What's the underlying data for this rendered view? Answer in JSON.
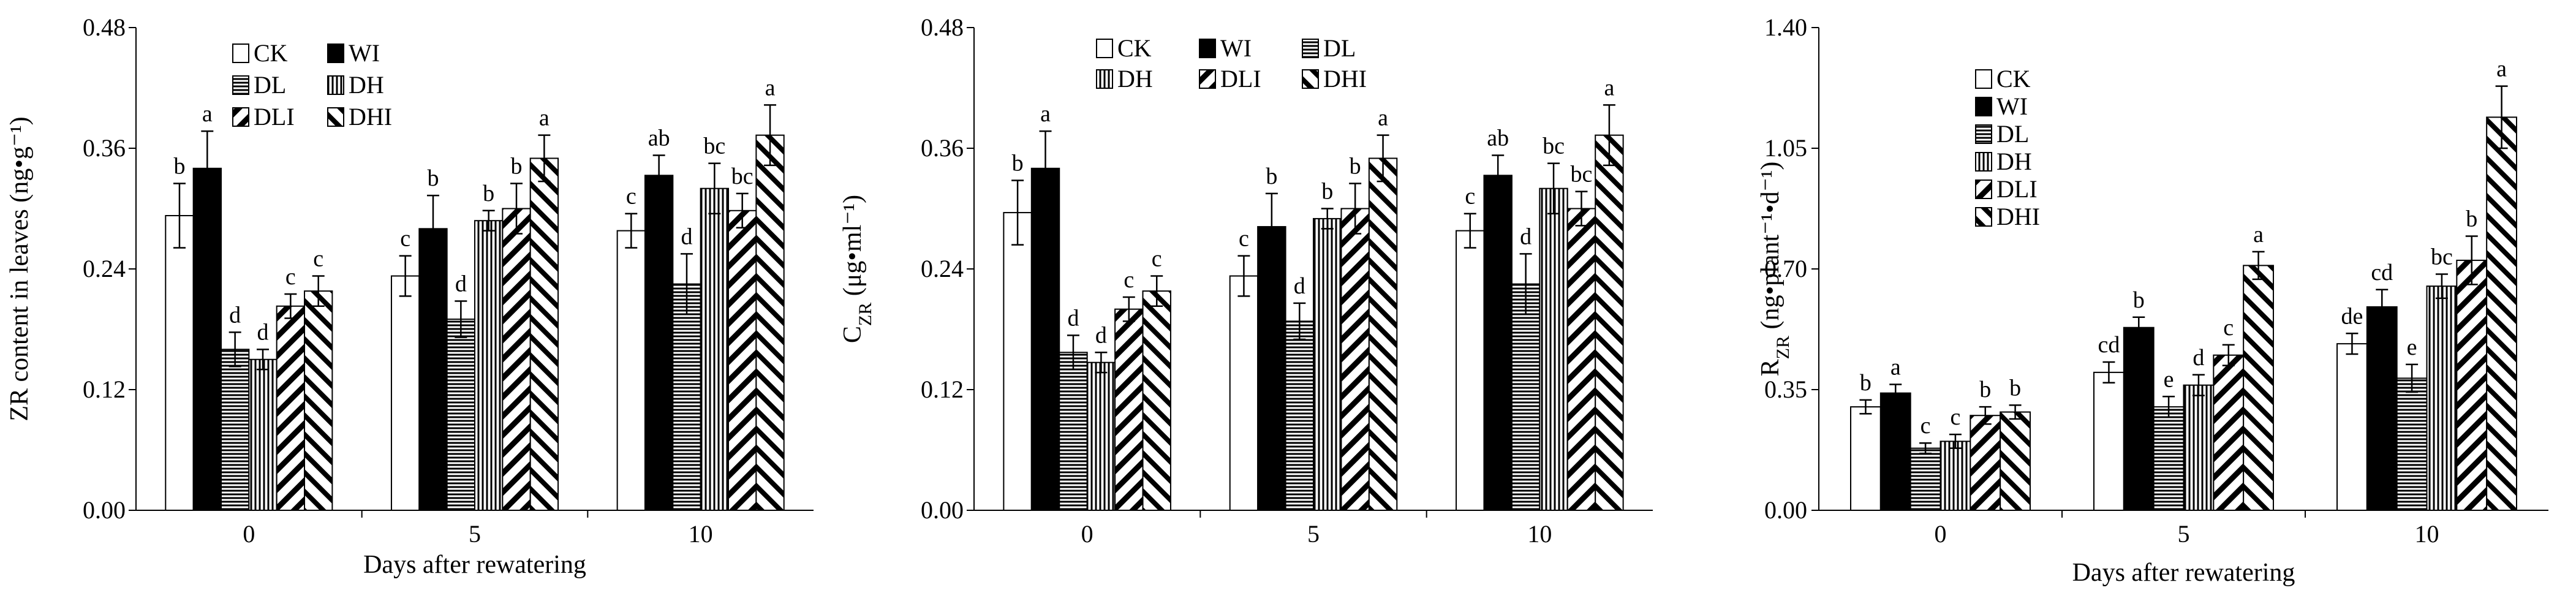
{
  "chart_data": [
    {
      "type": "bar",
      "panel": "A",
      "categories": [
        "0",
        "5",
        "10"
      ],
      "xlabel": "Days after rewatering",
      "ylabel": "ZR content in leaves (ng•g⁻¹)",
      "ylim": [
        0,
        0.48
      ],
      "yticks": [
        "0.00",
        "0.12",
        "0.24",
        "0.36",
        "0.48"
      ],
      "legend_position": "top-left",
      "legend_columns": 2,
      "series": [
        {
          "name": "CK",
          "pattern": "empty",
          "values": [
            0.293,
            0.233,
            0.278
          ],
          "errors": [
            0.032,
            0.02,
            0.017
          ],
          "letters": [
            "b",
            "c",
            "c"
          ]
        },
        {
          "name": "WI",
          "pattern": "solid",
          "values": [
            0.34,
            0.28,
            0.333
          ],
          "errors": [
            0.037,
            0.033,
            0.02
          ],
          "letters": [
            "a",
            "b",
            "ab"
          ]
        },
        {
          "name": "DL",
          "pattern": "horizontal",
          "values": [
            0.16,
            0.19,
            0.225
          ],
          "errors": [
            0.017,
            0.018,
            0.03
          ],
          "letters": [
            "d",
            "d",
            "d"
          ]
        },
        {
          "name": "DH",
          "pattern": "vertical",
          "values": [
            0.15,
            0.288,
            0.32
          ],
          "errors": [
            0.01,
            0.01,
            0.025
          ],
          "letters": [
            "d",
            "b",
            "bc"
          ]
        },
        {
          "name": "DLI",
          "pattern": "back",
          "values": [
            0.203,
            0.3,
            0.298
          ],
          "errors": [
            0.012,
            0.025,
            0.017
          ],
          "letters": [
            "c",
            "b",
            "bc"
          ]
        },
        {
          "name": "DHI",
          "pattern": "forward",
          "values": [
            0.218,
            0.35,
            0.373
          ],
          "errors": [
            0.015,
            0.023,
            0.03
          ],
          "letters": [
            "c",
            "a",
            "a"
          ]
        }
      ]
    },
    {
      "type": "bar",
      "panel": "B",
      "categories": [
        "0",
        "5",
        "10"
      ],
      "xlabel": "",
      "ylabel_main": "C",
      "ylabel_sub": "ZR",
      "ylabel_rest": " (μg•ml⁻¹)",
      "ylim": [
        0,
        0.48
      ],
      "yticks": [
        "0.00",
        "0.12",
        "0.24",
        "0.36",
        "0.48"
      ],
      "legend_position": "top",
      "legend_columns": 3,
      "series": [
        {
          "name": "CK",
          "pattern": "empty",
          "values": [
            0.296,
            0.233,
            0.278
          ],
          "errors": [
            0.032,
            0.02,
            0.017
          ],
          "letters": [
            "b",
            "c",
            "c"
          ]
        },
        {
          "name": "WI",
          "pattern": "solid",
          "values": [
            0.34,
            0.282,
            0.333
          ],
          "errors": [
            0.037,
            0.033,
            0.02
          ],
          "letters": [
            "a",
            "b",
            "ab"
          ]
        },
        {
          "name": "DL",
          "pattern": "horizontal",
          "values": [
            0.157,
            0.188,
            0.225
          ],
          "errors": [
            0.017,
            0.018,
            0.03
          ],
          "letters": [
            "d",
            "d",
            "d"
          ]
        },
        {
          "name": "DH",
          "pattern": "vertical",
          "values": [
            0.147,
            0.29,
            0.32
          ],
          "errors": [
            0.01,
            0.01,
            0.025
          ],
          "letters": [
            "d",
            "b",
            "bc"
          ]
        },
        {
          "name": "DLI",
          "pattern": "back",
          "values": [
            0.2,
            0.3,
            0.3
          ],
          "errors": [
            0.012,
            0.025,
            0.017
          ],
          "letters": [
            "c",
            "b",
            "bc"
          ]
        },
        {
          "name": "DHI",
          "pattern": "forward",
          "values": [
            0.218,
            0.35,
            0.373
          ],
          "errors": [
            0.015,
            0.023,
            0.03
          ],
          "letters": [
            "c",
            "a",
            "a"
          ]
        }
      ]
    },
    {
      "type": "bar",
      "panel": "C",
      "categories": [
        "0",
        "5",
        "10"
      ],
      "xlabel": "Days after rewatering",
      "ylabel_main": "R",
      "ylabel_sub": "ZR",
      "ylabel_rest": " (ng•plant⁻¹•d⁻¹)",
      "ylim": [
        0,
        1.4
      ],
      "yticks": [
        "0.00",
        "0.35",
        "0.70",
        "1.05",
        "1.40"
      ],
      "legend_position": "upper-left",
      "legend_columns": 1,
      "series": [
        {
          "name": "CK",
          "pattern": "empty",
          "values": [
            0.3,
            0.4,
            0.483
          ],
          "errors": [
            0.02,
            0.03,
            0.03
          ],
          "letters": [
            "b",
            "cd",
            "de"
          ]
        },
        {
          "name": "WI",
          "pattern": "solid",
          "values": [
            0.34,
            0.53,
            0.59
          ],
          "errors": [
            0.025,
            0.03,
            0.05
          ],
          "letters": [
            "a",
            "b",
            "cd"
          ]
        },
        {
          "name": "DL",
          "pattern": "horizontal",
          "values": [
            0.18,
            0.3,
            0.383
          ],
          "errors": [
            0.015,
            0.03,
            0.04
          ],
          "letters": [
            "c",
            "e",
            "e"
          ]
        },
        {
          "name": "DH",
          "pattern": "vertical",
          "values": [
            0.2,
            0.363,
            0.65
          ],
          "errors": [
            0.02,
            0.03,
            0.035
          ],
          "letters": [
            "c",
            "d",
            "bc"
          ]
        },
        {
          "name": "DLI",
          "pattern": "back",
          "values": [
            0.275,
            0.45,
            0.725
          ],
          "errors": [
            0.025,
            0.03,
            0.07
          ],
          "letters": [
            "b",
            "c",
            "b"
          ]
        },
        {
          "name": "DHI",
          "pattern": "forward",
          "values": [
            0.285,
            0.71,
            1.14
          ],
          "errors": [
            0.02,
            0.04,
            0.09
          ],
          "letters": [
            "b",
            "a",
            "a"
          ]
        }
      ]
    }
  ]
}
